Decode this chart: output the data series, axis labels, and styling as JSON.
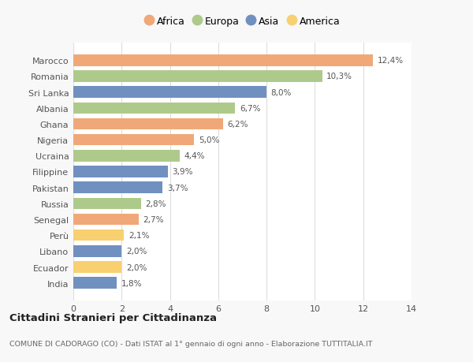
{
  "categories": [
    "India",
    "Ecuador",
    "Libano",
    "Perù",
    "Senegal",
    "Russia",
    "Pakistan",
    "Filippine",
    "Ucraina",
    "Nigeria",
    "Ghana",
    "Albania",
    "Sri Lanka",
    "Romania",
    "Marocco"
  ],
  "values": [
    1.8,
    2.0,
    2.0,
    2.1,
    2.7,
    2.8,
    3.7,
    3.9,
    4.4,
    5.0,
    6.2,
    6.7,
    8.0,
    10.3,
    12.4
  ],
  "labels": [
    "1,8%",
    "2,0%",
    "2,0%",
    "2,1%",
    "2,7%",
    "2,8%",
    "3,7%",
    "3,9%",
    "4,4%",
    "5,0%",
    "6,2%",
    "6,7%",
    "8,0%",
    "10,3%",
    "12,4%"
  ],
  "continents": [
    "Asia",
    "America",
    "Asia",
    "America",
    "Africa",
    "Europa",
    "Asia",
    "Asia",
    "Europa",
    "Africa",
    "Africa",
    "Europa",
    "Asia",
    "Europa",
    "Africa"
  ],
  "colors": {
    "Africa": "#F0A878",
    "Europa": "#AECA8A",
    "Asia": "#7090C0",
    "America": "#F8D070"
  },
  "legend_order": [
    "Africa",
    "Europa",
    "Asia",
    "America"
  ],
  "title": "Cittadini Stranieri per Cittadinanza",
  "subtitle": "COMUNE DI CADORAGO (CO) - Dati ISTAT al 1° gennaio di ogni anno - Elaborazione TUTTITALIA.IT",
  "xlim": [
    0,
    14
  ],
  "xticks": [
    0,
    2,
    4,
    6,
    8,
    10,
    12,
    14
  ],
  "background_color": "#f8f8f8",
  "bar_background": "#ffffff",
  "grid_color": "#dddddd"
}
